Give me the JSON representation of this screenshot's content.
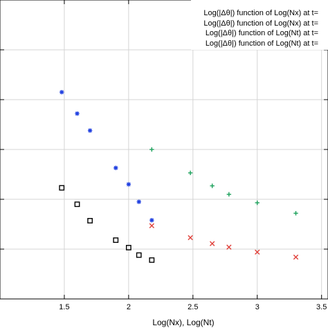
{
  "chart_data": {
    "type": "scatter",
    "xlabel": "Log(Nx), Log(Nt)",
    "ylabel": "",
    "title": "",
    "xlim": [
      1.0,
      3.55
    ],
    "x_ticks": [
      "1.5",
      "2",
      "2.5",
      "3",
      "3.5"
    ],
    "x_tick_values": [
      1.5,
      2.0,
      2.5,
      3.0,
      3.5
    ],
    "ylim": [
      0,
      6
    ],
    "y_gridlines": [
      1,
      2,
      3,
      4,
      5
    ],
    "grid": true,
    "legend_position": "top-right",
    "legend_entries": [
      "Log(|Δθ|) function of Log(Nx) at t=",
      "Log(|Δθ|) function of Log(Nx) at t=",
      "Log(|Δθ|) function of Log(Nt) at t=",
      "Log(|Δθ|) function of Log(Nt) at t="
    ],
    "series": [
      {
        "marker": "star",
        "color": "#1f3fe0",
        "points": [
          [
            1.48,
            4.15
          ],
          [
            1.6,
            3.72
          ],
          [
            1.7,
            3.38
          ],
          [
            1.9,
            2.63
          ],
          [
            2.0,
            2.3
          ],
          [
            2.08,
            1.95
          ],
          [
            2.18,
            1.58
          ]
        ]
      },
      {
        "marker": "square",
        "color": "#000000",
        "points": [
          [
            1.48,
            2.23
          ],
          [
            1.6,
            1.9
          ],
          [
            1.7,
            1.57
          ],
          [
            1.9,
            1.18
          ],
          [
            2.0,
            1.03
          ],
          [
            2.08,
            0.88
          ],
          [
            2.18,
            0.78
          ]
        ]
      },
      {
        "marker": "plus",
        "color": "#1aa05a",
        "points": [
          [
            2.18,
            3.0
          ],
          [
            2.48,
            2.53
          ],
          [
            2.65,
            2.27
          ],
          [
            2.78,
            2.1
          ],
          [
            3.0,
            1.93
          ],
          [
            3.3,
            1.72
          ]
        ]
      },
      {
        "marker": "x",
        "color": "#e0403a",
        "points": [
          [
            2.18,
            1.47
          ],
          [
            2.48,
            1.23
          ],
          [
            2.65,
            1.11
          ],
          [
            2.78,
            1.04
          ],
          [
            3.0,
            0.94
          ],
          [
            3.3,
            0.84
          ]
        ]
      }
    ]
  }
}
